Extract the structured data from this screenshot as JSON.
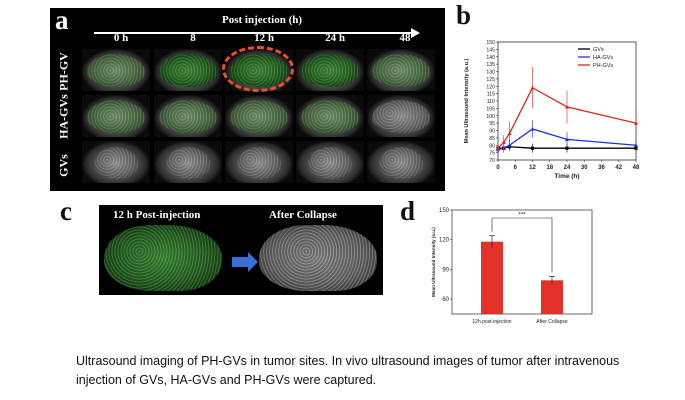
{
  "panel_a": {
    "letter": "a",
    "header": "Post injection (h)",
    "times": [
      "0 h",
      "8",
      "12 h",
      "24 h",
      "48"
    ],
    "rows": [
      "PH-GV",
      "HA-GVs",
      "GVs"
    ]
  },
  "panel_b": {
    "letter": "b"
  },
  "panel_c": {
    "letter": "c",
    "left_label": "12 h Post-injection",
    "right_label": "After Collapse"
  },
  "panel_d": {
    "letter": "d"
  },
  "colors": {
    "gvs": "#000000",
    "ha_gvs": "#1f2fd0",
    "ph_gvs": "#d9251c",
    "bar": "#e4322b",
    "highlight": "#e6502a",
    "arrow": "#3b6fd6"
  },
  "chart_data": [
    {
      "type": "line",
      "panel": "b",
      "xlabel": "Time (h)",
      "ylabel": "Mean Ultrasound Intensity (a.u.)",
      "xlim": [
        0,
        48
      ],
      "ylim": [
        70,
        150
      ],
      "xticks": [
        0,
        6,
        12,
        18,
        24,
        30,
        36,
        42,
        48
      ],
      "yticks": [
        70,
        75,
        80,
        85,
        90,
        95,
        100,
        105,
        110,
        115,
        120,
        125,
        130,
        135,
        140,
        145,
        150
      ],
      "legend": "top-right",
      "series": [
        {
          "name": "GVs",
          "color": "#000000",
          "x": [
            0,
            2,
            4,
            12,
            24,
            48
          ],
          "values": [
            78,
            78,
            79,
            78,
            78,
            78
          ],
          "err": [
            2,
            2,
            2,
            3,
            3,
            2
          ]
        },
        {
          "name": "HA-GVs",
          "color": "#1f2fd0",
          "x": [
            0,
            2,
            4,
            12,
            24,
            48
          ],
          "values": [
            77,
            78,
            80,
            91,
            84,
            80
          ],
          "err": [
            3,
            3,
            4,
            6,
            5,
            4
          ]
        },
        {
          "name": "PH-GVs",
          "color": "#d9251c",
          "x": [
            0,
            2,
            4,
            12,
            24,
            48
          ],
          "values": [
            78,
            82,
            88,
            119,
            106,
            95
          ],
          "err": [
            3,
            5,
            8,
            14,
            11,
            9
          ]
        }
      ]
    },
    {
      "type": "bar",
      "panel": "d",
      "ylabel": "Mean Ultrasound Intensity (a.u.)",
      "categories": [
        "12h post-injection",
        "After Collapse"
      ],
      "values": [
        118,
        79
      ],
      "err": [
        6,
        4
      ],
      "ylim": [
        45,
        150
      ],
      "yticks": [
        60,
        90,
        120,
        150
      ],
      "significance": "***"
    }
  ],
  "caption": "Ultrasound imaging of PH-GVs in tumor sites. In vivo ultrasound images of tumor after intravenous injection of GVs, HA-GVs and PH-GVs were captured."
}
